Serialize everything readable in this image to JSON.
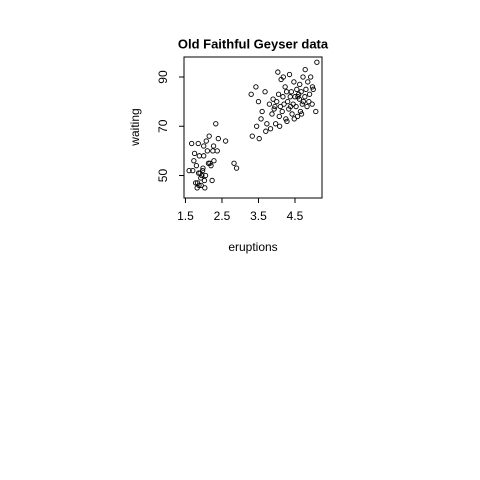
{
  "chart_data": {
    "type": "scatter",
    "title": "Old Faithful Geyser data",
    "xlabel": "eruptions",
    "ylabel": "waiting",
    "x": [
      1.8,
      1.75,
      1.83,
      1.87,
      1.9,
      1.92,
      1.95,
      1.97,
      2.0,
      2.0,
      2.03,
      2.07,
      2.1,
      2.17,
      2.2,
      2.23,
      2.27,
      2.33,
      1.7,
      1.73,
      1.78,
      1.85,
      1.88,
      1.93,
      1.98,
      2.02,
      2.05,
      2.13,
      2.15,
      2.25,
      2.37,
      2.4,
      1.6,
      1.67,
      1.82,
      1.86,
      2.28,
      2.6,
      2.83,
      2.9,
      3.33,
      3.43,
      3.5,
      3.57,
      3.6,
      3.68,
      3.73,
      3.8,
      3.83,
      3.87,
      3.9,
      3.93,
      3.97,
      4.0,
      4.03,
      4.05,
      4.07,
      4.1,
      4.12,
      4.15,
      4.17,
      4.2,
      4.23,
      4.25,
      4.27,
      4.3,
      4.33,
      4.35,
      4.37,
      4.4,
      4.42,
      4.45,
      4.47,
      4.5,
      4.53,
      4.55,
      4.57,
      4.6,
      4.62,
      4.63,
      4.65,
      4.67,
      4.7,
      4.72,
      4.73,
      4.77,
      4.8,
      4.83,
      4.85,
      4.9,
      4.93,
      4.97,
      5.0,
      5.07,
      5.1,
      3.45,
      3.52,
      3.7,
      3.95,
      4.08,
      4.18,
      4.28,
      4.38,
      4.48,
      4.58,
      4.68,
      4.78,
      4.88,
      4.98,
      3.3
    ],
    "values": [
      54,
      59,
      47,
      46,
      51,
      49,
      50,
      52,
      58,
      62,
      45,
      64,
      60,
      55,
      54,
      48,
      62,
      71,
      52,
      56,
      47,
      63,
      58,
      46,
      53,
      48,
      50,
      55,
      66,
      60,
      60,
      65,
      52,
      63,
      45,
      51,
      56,
      64,
      55,
      53,
      66,
      86,
      80,
      73,
      76,
      84,
      71,
      79,
      69,
      75,
      81,
      77,
      71,
      80,
      92,
      83,
      74,
      78,
      89,
      76,
      82,
      79,
      86,
      73,
      84,
      80,
      77,
      91,
      82,
      84,
      75,
      79,
      88,
      82,
      78,
      85,
      74,
      83,
      81,
      87,
      76,
      84,
      79,
      90,
      80,
      82,
      85,
      78,
      88,
      83,
      90,
      79,
      85,
      76,
      96,
      70,
      65,
      68,
      78,
      70,
      90,
      72,
      78,
      73,
      82,
      75,
      93,
      80,
      86,
      83
    ],
    "color": "#000000",
    "xlim": [
      1.46,
      5.24
    ],
    "xticks": [
      1.5,
      2.5,
      3.5,
      4.5
    ],
    "ylim": [
      40.88,
      98.12
    ],
    "yticks": [
      50,
      70,
      90
    ]
  }
}
